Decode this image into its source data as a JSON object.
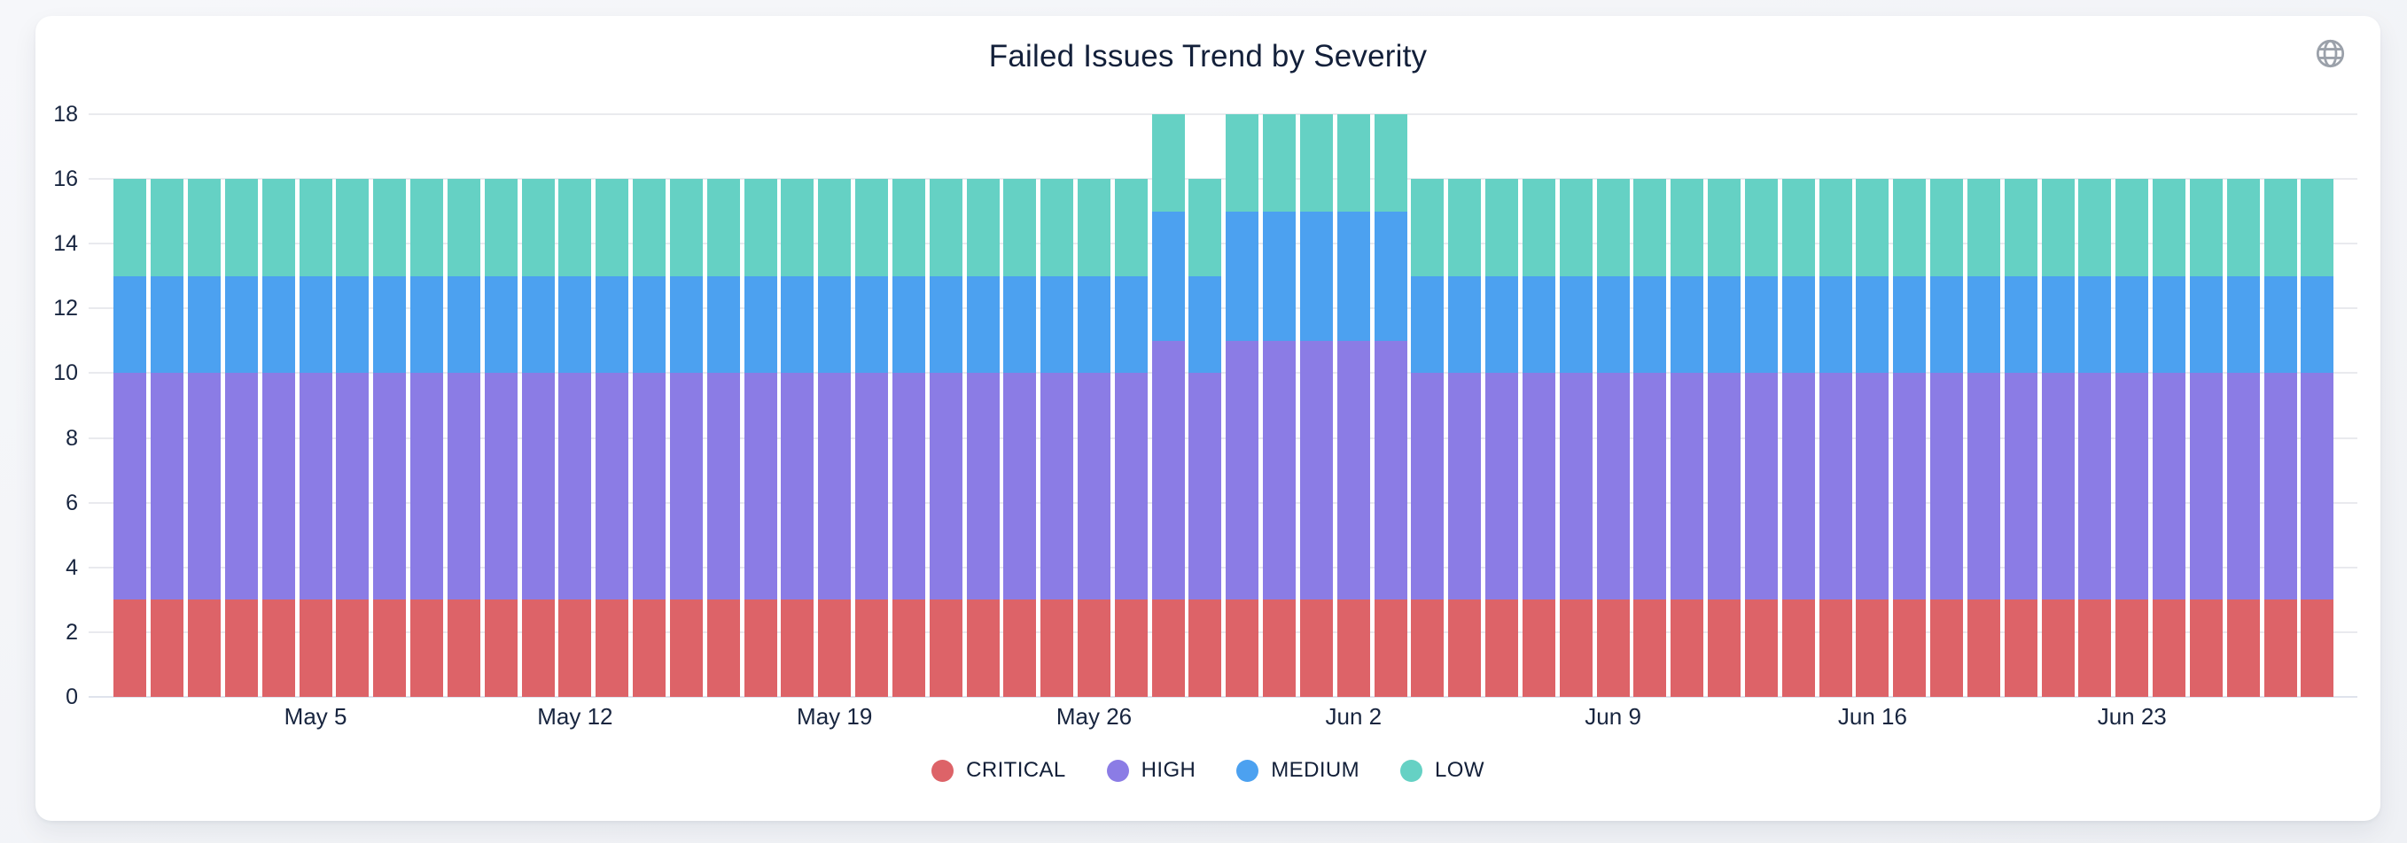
{
  "header": {
    "title": "Failed Issues Trend by Severity",
    "icon": "globe-icon"
  },
  "style": {
    "grid_color": "#e9eaee",
    "axis_line_color": "#dfe3ec",
    "text_color": "#18253f",
    "title_color": "#13203a",
    "icon_color": "#9ba1aa",
    "card_background": "#ffffff",
    "page_background": "#f1f2f6"
  },
  "chart_data": {
    "type": "bar",
    "stacked": true,
    "title": "Failed Issues Trend by Severity",
    "xlabel": "",
    "ylabel": "",
    "ylim": [
      0,
      18
    ],
    "y_ticks": [
      0,
      2,
      4,
      6,
      8,
      10,
      12,
      14,
      16,
      18
    ],
    "grid": true,
    "legend_position": "bottom",
    "x": [
      "Apr 30",
      "May 1",
      "May 2",
      "May 3",
      "May 4",
      "May 5",
      "May 6",
      "May 7",
      "May 8",
      "May 9",
      "May 10",
      "May 11",
      "May 12",
      "May 13",
      "May 14",
      "May 15",
      "May 16",
      "May 17",
      "May 18",
      "May 19",
      "May 20",
      "May 21",
      "May 22",
      "May 23",
      "May 24",
      "May 25",
      "May 26",
      "May 27",
      "May 28",
      "May 29",
      "May 30",
      "May 31",
      "Jun 1",
      "Jun 2",
      "Jun 3",
      "Jun 4",
      "Jun 5",
      "Jun 6",
      "Jun 7",
      "Jun 8",
      "Jun 9",
      "Jun 10",
      "Jun 11",
      "Jun 12",
      "Jun 13",
      "Jun 14",
      "Jun 15",
      "Jun 16",
      "Jun 17",
      "Jun 18",
      "Jun 19",
      "Jun 20",
      "Jun 21",
      "Jun 22",
      "Jun 23",
      "Jun 24",
      "Jun 25",
      "Jun 26",
      "Jun 27",
      "Jun 28"
    ],
    "x_ticks": [
      {
        "index": 5,
        "label": "May 5"
      },
      {
        "index": 12,
        "label": "May 12"
      },
      {
        "index": 19,
        "label": "May 19"
      },
      {
        "index": 26,
        "label": "May 26"
      },
      {
        "index": 33,
        "label": "Jun 2"
      },
      {
        "index": 40,
        "label": "Jun 9"
      },
      {
        "index": 47,
        "label": "Jun 16"
      },
      {
        "index": 54,
        "label": "Jun 23"
      }
    ],
    "series": [
      {
        "name": "CRITICAL",
        "color": "#dd6368",
        "values": [
          3,
          3,
          3,
          3,
          3,
          3,
          3,
          3,
          3,
          3,
          3,
          3,
          3,
          3,
          3,
          3,
          3,
          3,
          3,
          3,
          3,
          3,
          3,
          3,
          3,
          3,
          3,
          3,
          3,
          3,
          3,
          3,
          3,
          3,
          3,
          3,
          3,
          3,
          3,
          3,
          3,
          3,
          3,
          3,
          3,
          3,
          3,
          3,
          3,
          3,
          3,
          3,
          3,
          3,
          3,
          3,
          3,
          3,
          3,
          3
        ]
      },
      {
        "name": "HIGH",
        "color": "#8b7ce5",
        "values": [
          7,
          7,
          7,
          7,
          7,
          7,
          7,
          7,
          7,
          7,
          7,
          7,
          7,
          7,
          7,
          7,
          7,
          7,
          7,
          7,
          7,
          7,
          7,
          7,
          7,
          7,
          7,
          7,
          8,
          7,
          8,
          8,
          8,
          8,
          8,
          7,
          7,
          7,
          7,
          7,
          7,
          7,
          7,
          7,
          7,
          7,
          7,
          7,
          7,
          7,
          7,
          7,
          7,
          7,
          7,
          7,
          7,
          7,
          7,
          7
        ]
      },
      {
        "name": "MEDIUM",
        "color": "#4ca1f0",
        "values": [
          3,
          3,
          3,
          3,
          3,
          3,
          3,
          3,
          3,
          3,
          3,
          3,
          3,
          3,
          3,
          3,
          3,
          3,
          3,
          3,
          3,
          3,
          3,
          3,
          3,
          3,
          3,
          3,
          4,
          3,
          4,
          4,
          4,
          4,
          4,
          3,
          3,
          3,
          3,
          3,
          3,
          3,
          3,
          3,
          3,
          3,
          3,
          3,
          3,
          3,
          3,
          3,
          3,
          3,
          3,
          3,
          3,
          3,
          3,
          3
        ]
      },
      {
        "name": "LOW",
        "color": "#65d1c4",
        "values": [
          3,
          3,
          3,
          3,
          3,
          3,
          3,
          3,
          3,
          3,
          3,
          3,
          3,
          3,
          3,
          3,
          3,
          3,
          3,
          3,
          3,
          3,
          3,
          3,
          3,
          3,
          3,
          3,
          3,
          3,
          3,
          3,
          3,
          3,
          3,
          3,
          3,
          3,
          3,
          3,
          3,
          3,
          3,
          3,
          3,
          3,
          3,
          3,
          3,
          3,
          3,
          3,
          3,
          3,
          3,
          3,
          3,
          3,
          3,
          3
        ]
      }
    ]
  }
}
